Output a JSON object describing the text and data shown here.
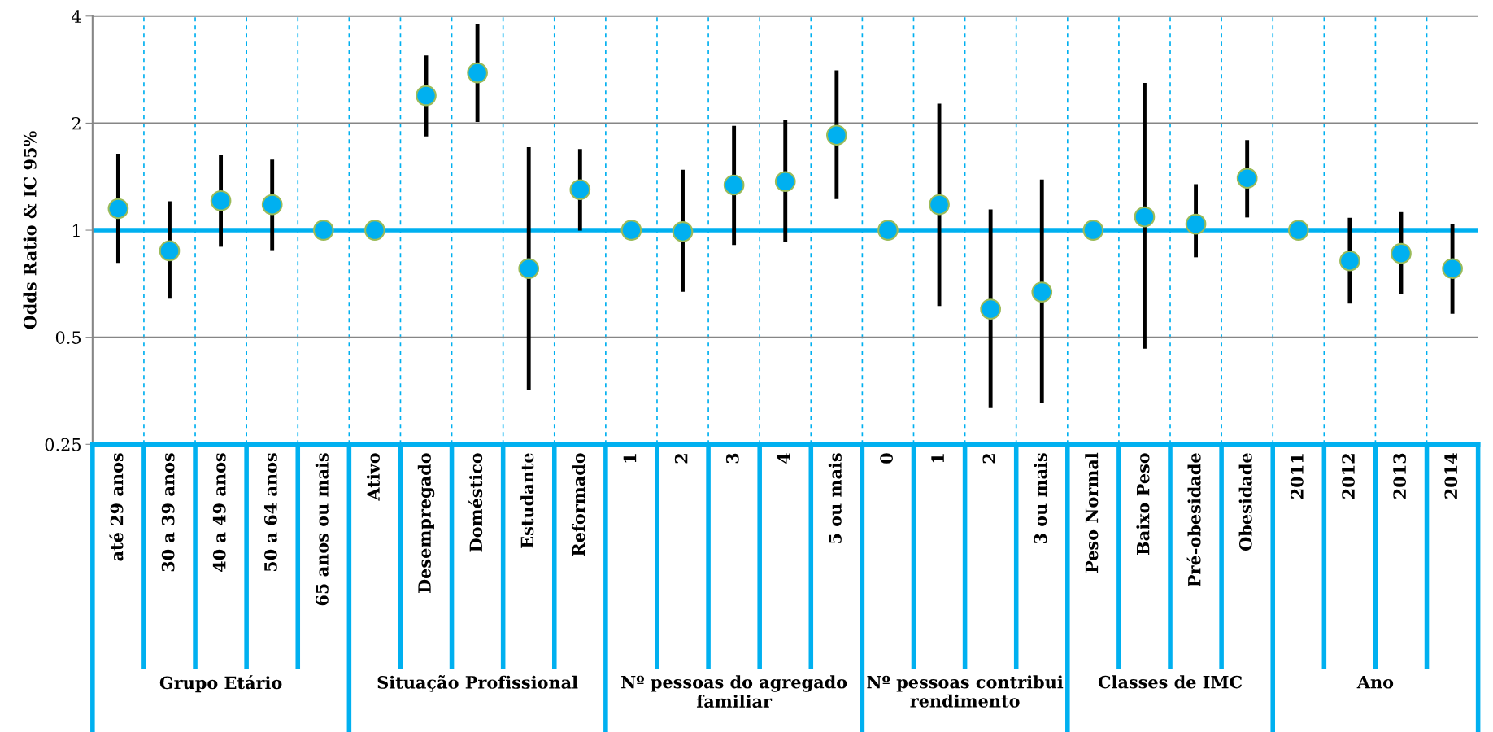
{
  "chart_data": {
    "type": "scatter",
    "ylabel": "Odds Ratio & IC 95%",
    "categories": [
      "até 29 anos",
      "30 a 39 anos",
      "40 a 49 anos",
      "50 a 64 anos",
      "65 anos ou mais",
      "Ativo",
      "Desempregado",
      "Doméstico",
      "Estudante",
      "Reformado",
      "1",
      "2",
      "3",
      "4",
      "5 ou mais",
      "0",
      "1",
      "2",
      "3 ou mais",
      "Peso Normal",
      "Baixo Peso",
      "Pré-obesidade",
      "Obesidade",
      "2011",
      "2012",
      "2013",
      "2014"
    ],
    "series": [
      {
        "color": "#00b0f0",
        "values": [
          1.15,
          0.875,
          1.21,
          1.18,
          1,
          1,
          2.39,
          2.77,
          0.78,
          1.3,
          1,
          0.99,
          1.34,
          1.37,
          1.85,
          1,
          1.18,
          0.6,
          0.67,
          1,
          1.09,
          1.04,
          1.4,
          1,
          0.82,
          0.86,
          0.78
        ],
        "errors": [
          [
            0.82,
            1.62
          ],
          [
            0.65,
            1.19
          ],
          [
            0.91,
            1.61
          ],
          [
            0.89,
            1.56
          ],
          null,
          null,
          [
            1.86,
            3.06
          ],
          [
            2.04,
            3.76
          ],
          [
            0.36,
            1.69
          ],
          [
            1.01,
            1.67
          ],
          null,
          [
            0.68,
            1.46
          ],
          [
            0.92,
            1.94
          ],
          [
            0.94,
            2.01
          ],
          [
            1.24,
            2.78
          ],
          null,
          [
            0.62,
            2.24
          ],
          [
            0.32,
            1.13
          ],
          [
            0.33,
            1.37
          ],
          null,
          [
            0.47,
            2.56
          ],
          [
            0.85,
            1.33
          ],
          [
            1.1,
            1.77
          ],
          null,
          [
            0.63,
            1.07
          ],
          [
            0.67,
            1.11
          ],
          [
            0.59,
            1.03
          ]
        ]
      }
    ],
    "log": "y",
    "ylim": [
      0.25,
      4
    ],
    "yticks": [
      0.25,
      0.5,
      1,
      2,
      4
    ],
    "grid": true,
    "marker": "circle",
    "ref_lines": [
      {
        "axis": "y",
        "value": 1,
        "color": "#00b0f0"
      }
    ],
    "annotations": [
      "Grupo Etário",
      "Situação Profissional",
      "Nº pessoas do agregado familiar",
      "Nº pessoas contribui rendimento",
      "Classes de IMC",
      "Ano"
    ]
  }
}
